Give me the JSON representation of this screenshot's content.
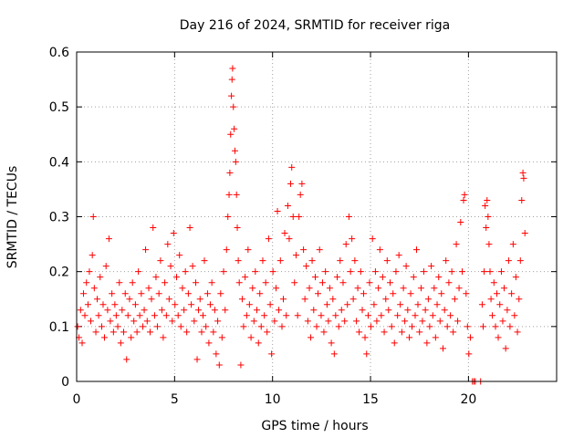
{
  "chart_data": {
    "type": "scatter",
    "title": "Day 216 of 2024, SRMTID for receiver riga",
    "xlabel": "GPS time / hours",
    "ylabel": "SRMTID / TECUs",
    "xlim": [
      0,
      24.5
    ],
    "ylim": [
      0,
      0.6
    ],
    "xticks": [
      0,
      5,
      10,
      15,
      20
    ],
    "xtick_labels": [
      "0",
      "5",
      "10",
      "15",
      "20"
    ],
    "yticks": [
      0,
      0.1,
      0.2,
      0.3,
      0.4,
      0.5,
      0.6
    ],
    "ytick_labels": [
      "0",
      "0.1",
      "0.2",
      "0.3",
      "0.4",
      "0.5",
      "0.6"
    ],
    "grid": true,
    "marker": "+",
    "color": "#ff0000",
    "series": [
      {
        "name": "SRMTID",
        "points": [
          [
            0.05,
            0.1
          ],
          [
            0.12,
            0.08
          ],
          [
            0.2,
            0.13
          ],
          [
            0.28,
            0.07
          ],
          [
            0.35,
            0.16
          ],
          [
            0.42,
            0.12
          ],
          [
            0.5,
            0.18
          ],
          [
            0.58,
            0.14
          ],
          [
            0.65,
            0.2
          ],
          [
            0.72,
            0.11
          ],
          [
            0.8,
            0.23
          ],
          [
            0.85,
            0.3
          ],
          [
            0.9,
            0.17
          ],
          [
            0.98,
            0.09
          ],
          [
            1.05,
            0.15
          ],
          [
            1.12,
            0.12
          ],
          [
            1.2,
            0.19
          ],
          [
            1.28,
            0.1
          ],
          [
            1.35,
            0.14
          ],
          [
            1.42,
            0.08
          ],
          [
            1.5,
            0.21
          ],
          [
            1.58,
            0.13
          ],
          [
            1.65,
            0.26
          ],
          [
            1.72,
            0.11
          ],
          [
            1.8,
            0.16
          ],
          [
            1.88,
            0.09
          ],
          [
            1.95,
            0.14
          ],
          [
            2.02,
            0.12
          ],
          [
            2.1,
            0.1
          ],
          [
            2.18,
            0.18
          ],
          [
            2.25,
            0.07
          ],
          [
            2.32,
            0.13
          ],
          [
            2.4,
            0.09
          ],
          [
            2.48,
            0.16
          ],
          [
            2.55,
            0.04
          ],
          [
            2.62,
            0.12
          ],
          [
            2.7,
            0.15
          ],
          [
            2.78,
            0.08
          ],
          [
            2.85,
            0.18
          ],
          [
            2.92,
            0.11
          ],
          [
            3.0,
            0.14
          ],
          [
            3.08,
            0.09
          ],
          [
            3.15,
            0.2
          ],
          [
            3.22,
            0.12
          ],
          [
            3.3,
            0.16
          ],
          [
            3.38,
            0.1
          ],
          [
            3.45,
            0.13
          ],
          [
            3.52,
            0.24
          ],
          [
            3.6,
            0.11
          ],
          [
            3.68,
            0.17
          ],
          [
            3.75,
            0.09
          ],
          [
            3.82,
            0.15
          ],
          [
            3.9,
            0.28
          ],
          [
            3.98,
            0.12
          ],
          [
            4.05,
            0.19
          ],
          [
            4.12,
            0.1
          ],
          [
            4.2,
            0.16
          ],
          [
            4.28,
            0.22
          ],
          [
            4.35,
            0.13
          ],
          [
            4.42,
            0.08
          ],
          [
            4.5,
            0.18
          ],
          [
            4.58,
            0.12
          ],
          [
            4.65,
            0.25
          ],
          [
            4.72,
            0.15
          ],
          [
            4.8,
            0.21
          ],
          [
            4.88,
            0.11
          ],
          [
            4.95,
            0.27
          ],
          [
            5.02,
            0.14
          ],
          [
            5.1,
            0.19
          ],
          [
            5.18,
            0.12
          ],
          [
            5.25,
            0.23
          ],
          [
            5.32,
            0.1
          ],
          [
            5.4,
            0.17
          ],
          [
            5.48,
            0.13
          ],
          [
            5.55,
            0.2
          ],
          [
            5.62,
            0.09
          ],
          [
            5.7,
            0.16
          ],
          [
            5.78,
            0.28
          ],
          [
            5.85,
            0.14
          ],
          [
            5.92,
            0.21
          ],
          [
            6.0,
            0.11
          ],
          [
            6.08,
            0.18
          ],
          [
            6.15,
            0.04
          ],
          [
            6.22,
            0.13
          ],
          [
            6.3,
            0.15
          ],
          [
            6.38,
            0.09
          ],
          [
            6.45,
            0.12
          ],
          [
            6.52,
            0.22
          ],
          [
            6.6,
            0.1
          ],
          [
            6.68,
            0.16
          ],
          [
            6.75,
            0.07
          ],
          [
            6.82,
            0.14
          ],
          [
            6.9,
            0.18
          ],
          [
            6.98,
            0.09
          ],
          [
            7.05,
            0.13
          ],
          [
            7.12,
            0.05
          ],
          [
            7.2,
            0.11
          ],
          [
            7.28,
            0.03
          ],
          [
            7.35,
            0.16
          ],
          [
            7.42,
            0.08
          ],
          [
            7.5,
            0.2
          ],
          [
            7.58,
            0.13
          ],
          [
            7.65,
            0.24
          ],
          [
            7.72,
            0.3
          ],
          [
            7.78,
            0.34
          ],
          [
            7.82,
            0.38
          ],
          [
            7.86,
            0.45
          ],
          [
            7.9,
            0.52
          ],
          [
            7.93,
            0.55
          ],
          [
            7.96,
            0.57
          ],
          [
            8.0,
            0.5
          ],
          [
            8.04,
            0.46
          ],
          [
            8.08,
            0.42
          ],
          [
            8.12,
            0.4
          ],
          [
            8.16,
            0.34
          ],
          [
            8.2,
            0.28
          ],
          [
            8.25,
            0.22
          ],
          [
            8.3,
            0.18
          ],
          [
            8.38,
            0.03
          ],
          [
            8.45,
            0.15
          ],
          [
            8.52,
            0.1
          ],
          [
            8.6,
            0.19
          ],
          [
            8.68,
            0.12
          ],
          [
            8.75,
            0.24
          ],
          [
            8.82,
            0.14
          ],
          [
            8.9,
            0.08
          ],
          [
            8.98,
            0.17
          ],
          [
            9.05,
            0.11
          ],
          [
            9.12,
            0.2
          ],
          [
            9.2,
            0.13
          ],
          [
            9.28,
            0.07
          ],
          [
            9.35,
            0.16
          ],
          [
            9.42,
            0.1
          ],
          [
            9.5,
            0.22
          ],
          [
            9.58,
            0.12
          ],
          [
            9.65,
            0.18
          ],
          [
            9.72,
            0.09
          ],
          [
            9.8,
            0.26
          ],
          [
            9.88,
            0.14
          ],
          [
            9.95,
            0.05
          ],
          [
            10.02,
            0.2
          ],
          [
            10.1,
            0.11
          ],
          [
            10.18,
            0.17
          ],
          [
            10.25,
            0.31
          ],
          [
            10.32,
            0.13
          ],
          [
            10.4,
            0.22
          ],
          [
            10.48,
            0.1
          ],
          [
            10.55,
            0.15
          ],
          [
            10.62,
            0.27
          ],
          [
            10.7,
            0.12
          ],
          [
            10.78,
            0.32
          ],
          [
            10.85,
            0.26
          ],
          [
            10.92,
            0.36
          ],
          [
            10.98,
            0.39
          ],
          [
            11.05,
            0.3
          ],
          [
            11.12,
            0.18
          ],
          [
            11.2,
            0.23
          ],
          [
            11.28,
            0.12
          ],
          [
            11.35,
            0.3
          ],
          [
            11.42,
            0.34
          ],
          [
            11.5,
            0.36
          ],
          [
            11.58,
            0.24
          ],
          [
            11.65,
            0.15
          ],
          [
            11.72,
            0.21
          ],
          [
            11.8,
            0.11
          ],
          [
            11.88,
            0.17
          ],
          [
            11.95,
            0.08
          ],
          [
            12.02,
            0.22
          ],
          [
            12.1,
            0.13
          ],
          [
            12.18,
            0.19
          ],
          [
            12.25,
            0.1
          ],
          [
            12.32,
            0.16
          ],
          [
            12.4,
            0.24
          ],
          [
            12.48,
            0.12
          ],
          [
            12.55,
            0.18
          ],
          [
            12.62,
            0.09
          ],
          [
            12.7,
            0.2
          ],
          [
            12.78,
            0.14
          ],
          [
            12.85,
            0.11
          ],
          [
            12.92,
            0.17
          ],
          [
            13.0,
            0.07
          ],
          [
            13.08,
            0.15
          ],
          [
            13.15,
            0.05
          ],
          [
            13.22,
            0.12
          ],
          [
            13.3,
            0.19
          ],
          [
            13.38,
            0.1
          ],
          [
            13.45,
            0.22
          ],
          [
            13.52,
            0.13
          ],
          [
            13.6,
            0.18
          ],
          [
            13.68,
            0.11
          ],
          [
            13.75,
            0.25
          ],
          [
            13.82,
            0.14
          ],
          [
            13.9,
            0.3
          ],
          [
            13.98,
            0.2
          ],
          [
            14.05,
            0.26
          ],
          [
            14.12,
            0.15
          ],
          [
            14.2,
            0.22
          ],
          [
            14.28,
            0.11
          ],
          [
            14.35,
            0.17
          ],
          [
            14.42,
            0.09
          ],
          [
            14.5,
            0.2
          ],
          [
            14.58,
            0.13
          ],
          [
            14.65,
            0.16
          ],
          [
            14.72,
            0.08
          ],
          [
            14.8,
            0.05
          ],
          [
            14.88,
            0.12
          ],
          [
            14.95,
            0.18
          ],
          [
            15.02,
            0.1
          ],
          [
            15.1,
            0.26
          ],
          [
            15.18,
            0.14
          ],
          [
            15.25,
            0.2
          ],
          [
            15.32,
            0.11
          ],
          [
            15.4,
            0.17
          ],
          [
            15.48,
            0.24
          ],
          [
            15.55,
            0.12
          ],
          [
            15.62,
            0.19
          ],
          [
            15.7,
            0.09
          ],
          [
            15.78,
            0.15
          ],
          [
            15.85,
            0.22
          ],
          [
            15.92,
            0.13
          ],
          [
            16.0,
            0.18
          ],
          [
            16.08,
            0.1
          ],
          [
            16.15,
            0.16
          ],
          [
            16.22,
            0.07
          ],
          [
            16.3,
            0.2
          ],
          [
            16.38,
            0.12
          ],
          [
            16.45,
            0.23
          ],
          [
            16.52,
            0.14
          ],
          [
            16.6,
            0.09
          ],
          [
            16.68,
            0.17
          ],
          [
            16.75,
            0.11
          ],
          [
            16.82,
            0.21
          ],
          [
            16.9,
            0.13
          ],
          [
            16.98,
            0.08
          ],
          [
            17.05,
            0.16
          ],
          [
            17.12,
            0.1
          ],
          [
            17.2,
            0.19
          ],
          [
            17.28,
            0.12
          ],
          [
            17.35,
            0.24
          ],
          [
            17.42,
            0.14
          ],
          [
            17.5,
            0.09
          ],
          [
            17.58,
            0.17
          ],
          [
            17.65,
            0.11
          ],
          [
            17.72,
            0.2
          ],
          [
            17.8,
            0.13
          ],
          [
            17.88,
            0.07
          ],
          [
            17.95,
            0.15
          ],
          [
            18.02,
            0.1
          ],
          [
            18.1,
            0.21
          ],
          [
            18.18,
            0.12
          ],
          [
            18.25,
            0.17
          ],
          [
            18.32,
            0.08
          ],
          [
            18.4,
            0.14
          ],
          [
            18.48,
            0.19
          ],
          [
            18.55,
            0.11
          ],
          [
            18.62,
            0.16
          ],
          [
            18.7,
            0.06
          ],
          [
            18.78,
            0.13
          ],
          [
            18.85,
            0.22
          ],
          [
            18.92,
            0.1
          ],
          [
            19.0,
            0.18
          ],
          [
            19.08,
            0.12
          ],
          [
            19.15,
            0.2
          ],
          [
            19.22,
            0.09
          ],
          [
            19.3,
            0.15
          ],
          [
            19.38,
            0.25
          ],
          [
            19.45,
            0.11
          ],
          [
            19.52,
            0.17
          ],
          [
            19.6,
            0.29
          ],
          [
            19.68,
            0.2
          ],
          [
            19.75,
            0.33
          ],
          [
            19.8,
            0.34
          ],
          [
            19.88,
            0.16
          ],
          [
            19.95,
            0.1
          ],
          [
            20.02,
            0.05
          ],
          [
            20.1,
            0.08
          ],
          [
            20.2,
            0.0
          ],
          [
            20.28,
            0.0
          ],
          [
            20.35,
            0.0
          ],
          [
            20.62,
            0.0
          ],
          [
            20.7,
            0.14
          ],
          [
            20.75,
            0.1
          ],
          [
            20.8,
            0.2
          ],
          [
            20.85,
            0.32
          ],
          [
            20.9,
            0.28
          ],
          [
            20.95,
            0.33
          ],
          [
            21.0,
            0.3
          ],
          [
            21.05,
            0.25
          ],
          [
            21.1,
            0.2
          ],
          [
            21.15,
            0.15
          ],
          [
            21.22,
            0.12
          ],
          [
            21.3,
            0.18
          ],
          [
            21.38,
            0.1
          ],
          [
            21.45,
            0.16
          ],
          [
            21.52,
            0.08
          ],
          [
            21.6,
            0.14
          ],
          [
            21.68,
            0.2
          ],
          [
            21.75,
            0.11
          ],
          [
            21.82,
            0.17
          ],
          [
            21.9,
            0.06
          ],
          [
            21.98,
            0.13
          ],
          [
            22.05,
            0.22
          ],
          [
            22.12,
            0.1
          ],
          [
            22.2,
            0.16
          ],
          [
            22.28,
            0.25
          ],
          [
            22.35,
            0.12
          ],
          [
            22.42,
            0.19
          ],
          [
            22.5,
            0.09
          ],
          [
            22.58,
            0.15
          ],
          [
            22.65,
            0.22
          ],
          [
            22.72,
            0.33
          ],
          [
            22.78,
            0.38
          ],
          [
            22.82,
            0.37
          ],
          [
            22.88,
            0.27
          ]
        ]
      }
    ]
  }
}
